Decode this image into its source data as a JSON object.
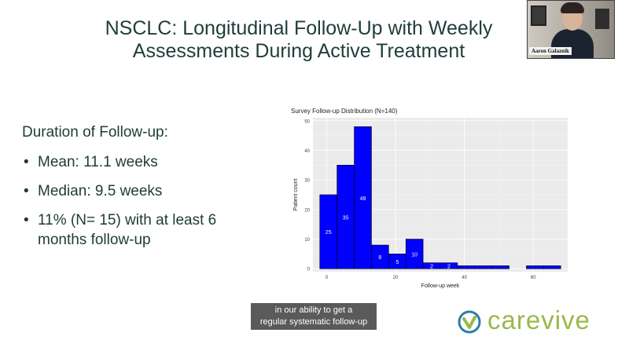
{
  "slide": {
    "title_line1": "NSCLC: Longitudinal Follow-Up with Weekly",
    "title_line2": "Assessments During Active Treatment",
    "heading": "Duration of Follow-up:",
    "bullets": [
      "Mean: 11.1 weeks",
      "Median: 9.5 weeks",
      "11% (N= 15) with at least 6 months follow-up"
    ]
  },
  "video": {
    "participant_name": "Aaron Galaznik"
  },
  "caption": {
    "line1": "in our ability to get a",
    "line2": "regular systematic follow-up"
  },
  "logo": {
    "text": "carevive"
  },
  "colors": {
    "title": "#1f3d3a",
    "bar_fill": "#0000ff",
    "panel_bg": "#ebebeb",
    "logo_green": "#9bb84a",
    "logo_blue": "#2a7fa8"
  },
  "chart_data": {
    "type": "bar",
    "title": "Survey Follow-up Distribution (N=140)",
    "xlabel": "Follow-up week",
    "ylabel": "Patient count",
    "bins": [
      {
        "x0": -2,
        "x1": 3,
        "value": 25,
        "label": "25"
      },
      {
        "x0": 3,
        "x1": 8,
        "value": 35,
        "label": "35"
      },
      {
        "x0": 8,
        "x1": 13,
        "value": 48,
        "label": "48"
      },
      {
        "x0": 13,
        "x1": 18,
        "value": 8,
        "label": "8"
      },
      {
        "x0": 18,
        "x1": 23,
        "value": 5,
        "label": "5"
      },
      {
        "x0": 23,
        "x1": 28,
        "value": 10,
        "label": "10"
      },
      {
        "x0": 28,
        "x1": 33,
        "value": 2,
        "label": "2"
      },
      {
        "x0": 33,
        "x1": 38,
        "value": 2,
        "label": "2"
      },
      {
        "x0": 38,
        "x1": 43,
        "value": 1,
        "label": ""
      },
      {
        "x0": 43,
        "x1": 48,
        "value": 1,
        "label": ""
      },
      {
        "x0": 48,
        "x1": 53,
        "value": 1,
        "label": ""
      },
      {
        "x0": 53,
        "x1": 58,
        "value": 0,
        "label": ""
      },
      {
        "x0": 58,
        "x1": 63,
        "value": 1,
        "label": ""
      },
      {
        "x0": 63,
        "x1": 68,
        "value": 1,
        "label": ""
      }
    ],
    "xlim": [
      -4,
      70
    ],
    "ylim": [
      -1,
      51
    ],
    "xticks": [
      0,
      20,
      40,
      60
    ],
    "yticks": [
      0,
      10,
      20,
      30,
      40,
      50
    ],
    "grid": true
  }
}
